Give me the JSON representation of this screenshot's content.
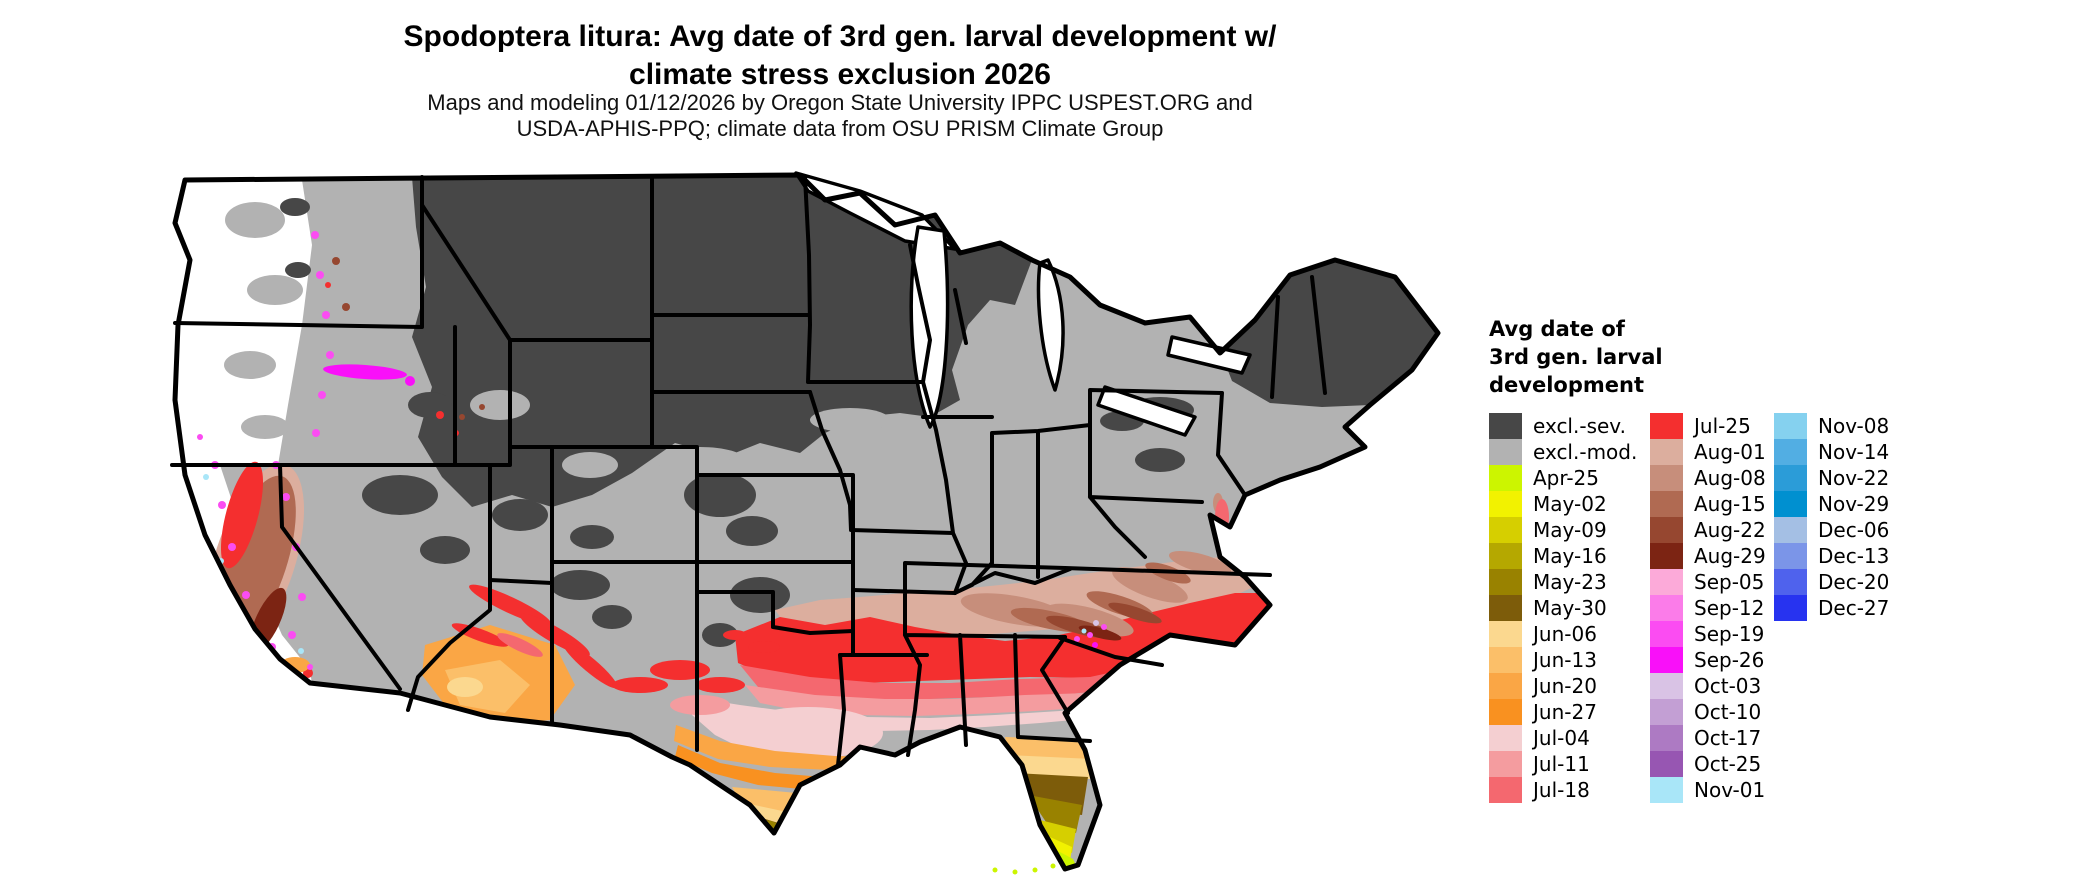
{
  "title": {
    "line1": "Spodoptera litura: Avg date of 3rd gen. larval development w/",
    "line2": "climate stress exclusion 2026"
  },
  "subtitle": {
    "line1": "Maps and modeling 01/12/2026 by Oregon State University IPPC USPEST.ORG and",
    "line2": "USDA-APHIS-PPQ; climate data from OSU PRISM Climate Group"
  },
  "map": {
    "region": "Continental United States",
    "background": "#ffffff",
    "state_border_color": "#000000"
  },
  "legend": {
    "title_lines": [
      "Avg date of",
      "3rd gen. larval",
      "development"
    ],
    "columns": [
      [
        {
          "label": "excl.-sev.",
          "key": "excl_sev"
        },
        {
          "label": "excl.-mod.",
          "key": "excl_mod"
        },
        {
          "label": "Apr-25",
          "key": "apr25"
        },
        {
          "label": "May-02",
          "key": "may02"
        },
        {
          "label": "May-09",
          "key": "may09"
        },
        {
          "label": "May-16",
          "key": "may16"
        },
        {
          "label": "May-23",
          "key": "may23"
        },
        {
          "label": "May-30",
          "key": "may30"
        },
        {
          "label": "Jun-06",
          "key": "jun06"
        },
        {
          "label": "Jun-13",
          "key": "jun13"
        },
        {
          "label": "Jun-20",
          "key": "jun20"
        },
        {
          "label": "Jun-27",
          "key": "jun27"
        },
        {
          "label": "Jul-04",
          "key": "jul04"
        },
        {
          "label": "Jul-11",
          "key": "jul11"
        },
        {
          "label": "Jul-18",
          "key": "jul18"
        }
      ],
      [
        {
          "label": "Jul-25",
          "key": "jul25"
        },
        {
          "label": "Aug-01",
          "key": "aug01"
        },
        {
          "label": "Aug-08",
          "key": "aug08"
        },
        {
          "label": "Aug-15",
          "key": "aug15"
        },
        {
          "label": "Aug-22",
          "key": "aug22"
        },
        {
          "label": "Aug-29",
          "key": "aug29"
        },
        {
          "label": "Sep-05",
          "key": "sep05"
        },
        {
          "label": "Sep-12",
          "key": "sep12"
        },
        {
          "label": "Sep-19",
          "key": "sep19"
        },
        {
          "label": "Sep-26",
          "key": "sep26"
        },
        {
          "label": "Oct-03",
          "key": "oct03"
        },
        {
          "label": "Oct-10",
          "key": "oct10"
        },
        {
          "label": "Oct-17",
          "key": "oct17"
        },
        {
          "label": "Oct-25",
          "key": "oct25"
        },
        {
          "label": "Nov-01",
          "key": "nov01"
        }
      ],
      [
        {
          "label": "Nov-08",
          "key": "nov08"
        },
        {
          "label": "Nov-14",
          "key": "nov14"
        },
        {
          "label": "Nov-22",
          "key": "nov22"
        },
        {
          "label": "Nov-29",
          "key": "nov29"
        },
        {
          "label": "Dec-06",
          "key": "dec06"
        },
        {
          "label": "Dec-13",
          "key": "dec13"
        },
        {
          "label": "Dec-20",
          "key": "dec20"
        },
        {
          "label": "Dec-27",
          "key": "dec27"
        }
      ]
    ]
  },
  "palette": {
    "excl_sev": "#474747",
    "excl_mod": "#b2b2b2",
    "apr25": "#ccf500",
    "may02": "#f2f200",
    "may09": "#d6cf00",
    "may16": "#b5a800",
    "may23": "#998200",
    "may30": "#7d5c0a",
    "jun06": "#fbd88f",
    "jun13": "#fbbf69",
    "jun20": "#faa645",
    "jun27": "#f99120",
    "jul04": "#f4cfd1",
    "jul11": "#f49c9f",
    "jul18": "#f4686f",
    "jul25": "#f42f2f",
    "aug01": "#dcae9e",
    "aug08": "#c78e7b",
    "aug15": "#b06a52",
    "aug22": "#964730",
    "aug29": "#7c2413",
    "sep05": "#fcaad9",
    "sep12": "#fb7ce9",
    "sep19": "#fb4cf2",
    "sep26": "#f910f9",
    "oct03": "#d9c3e5",
    "oct10": "#c39fd4",
    "oct17": "#ad7ac3",
    "oct25": "#9756b2",
    "nov01": "#a9e6f8",
    "nov08": "#85d1ef",
    "nov14": "#52aee3",
    "nov22": "#2b9cd8",
    "nov29": "#0090d0",
    "dec06": "#a4bfe4",
    "dec13": "#7b95e8",
    "dec20": "#4f62ed",
    "dec27": "#2733f0"
  }
}
